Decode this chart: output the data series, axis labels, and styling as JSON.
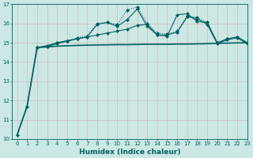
{
  "xlabel": "Humidex (Indice chaleur)",
  "xlim": [
    -0.5,
    23
  ],
  "ylim": [
    10,
    17
  ],
  "background_color": "#cce8e4",
  "grid_color": "#b0d8cc",
  "line_color": "#006060",
  "series": [
    {
      "x": [
        2,
        3,
        4,
        5,
        6,
        7,
        8,
        9,
        10,
        11,
        12,
        13,
        14,
        15,
        16,
        17,
        18,
        19,
        20,
        21,
        22,
        23
      ],
      "y": [
        14.75,
        14.8,
        15.0,
        15.1,
        15.25,
        15.35,
        16.0,
        16.05,
        15.95,
        16.7,
        16.85,
        16.0,
        15.5,
        15.45,
        15.6,
        16.4,
        16.3,
        16.05,
        15.0,
        15.2,
        15.3,
        15.0
      ],
      "marker": "D",
      "markersize": 2.0,
      "linewidth": 0.8,
      "linestyle": "dotted"
    },
    {
      "x": [
        2,
        3,
        4,
        5,
        6,
        7,
        8,
        9,
        10,
        11,
        12,
        13,
        14,
        15,
        16,
        17,
        18,
        19,
        20,
        21,
        22,
        23
      ],
      "y": [
        14.75,
        14.85,
        15.0,
        15.1,
        15.2,
        15.3,
        15.95,
        16.05,
        15.85,
        16.2,
        16.75,
        15.85,
        15.4,
        15.4,
        15.55,
        16.35,
        16.25,
        15.95,
        14.95,
        15.15,
        15.25,
        14.95
      ],
      "marker": "D",
      "markersize": 2.0,
      "linewidth": 0.8,
      "linestyle": "solid"
    },
    {
      "x": [
        0,
        1,
        2,
        3,
        4,
        5,
        6,
        7,
        8,
        9,
        10,
        11,
        12,
        13,
        14,
        15,
        16,
        17,
        18,
        19,
        20,
        21,
        22,
        23
      ],
      "y": [
        10.2,
        11.7,
        14.75,
        14.8,
        14.95,
        15.08,
        15.2,
        15.3,
        15.4,
        15.5,
        15.6,
        15.7,
        15.9,
        15.95,
        15.4,
        15.35,
        16.45,
        16.5,
        16.1,
        16.05,
        15.0,
        15.2,
        15.3,
        15.0
      ],
      "marker": "D",
      "markersize": 2.0,
      "linewidth": 0.8,
      "linestyle": "solid"
    },
    {
      "x": [
        0,
        1,
        2,
        3,
        4,
        5,
        6,
        7,
        8,
        9,
        10,
        11,
        12,
        13,
        14,
        15,
        16,
        17,
        18,
        19,
        20,
        21,
        22,
        23
      ],
      "y": [
        10.2,
        11.7,
        14.75,
        14.78,
        14.82,
        14.84,
        14.86,
        14.87,
        14.88,
        14.89,
        14.9,
        14.9,
        14.91,
        14.92,
        14.92,
        14.92,
        14.93,
        14.93,
        14.94,
        14.95,
        14.97,
        14.98,
        14.99,
        15.0
      ],
      "marker": null,
      "markersize": 0,
      "linewidth": 1.2,
      "linestyle": "solid"
    }
  ],
  "yticks": [
    10,
    11,
    12,
    13,
    14,
    15,
    16,
    17
  ],
  "xticks": [
    0,
    1,
    2,
    3,
    4,
    5,
    6,
    7,
    8,
    9,
    10,
    11,
    12,
    13,
    14,
    15,
    16,
    17,
    18,
    19,
    20,
    21,
    22,
    23
  ],
  "tick_fontsize": 5.0,
  "xlabel_fontsize": 6.5,
  "tick_color": "#006060",
  "axis_color": "#006060"
}
